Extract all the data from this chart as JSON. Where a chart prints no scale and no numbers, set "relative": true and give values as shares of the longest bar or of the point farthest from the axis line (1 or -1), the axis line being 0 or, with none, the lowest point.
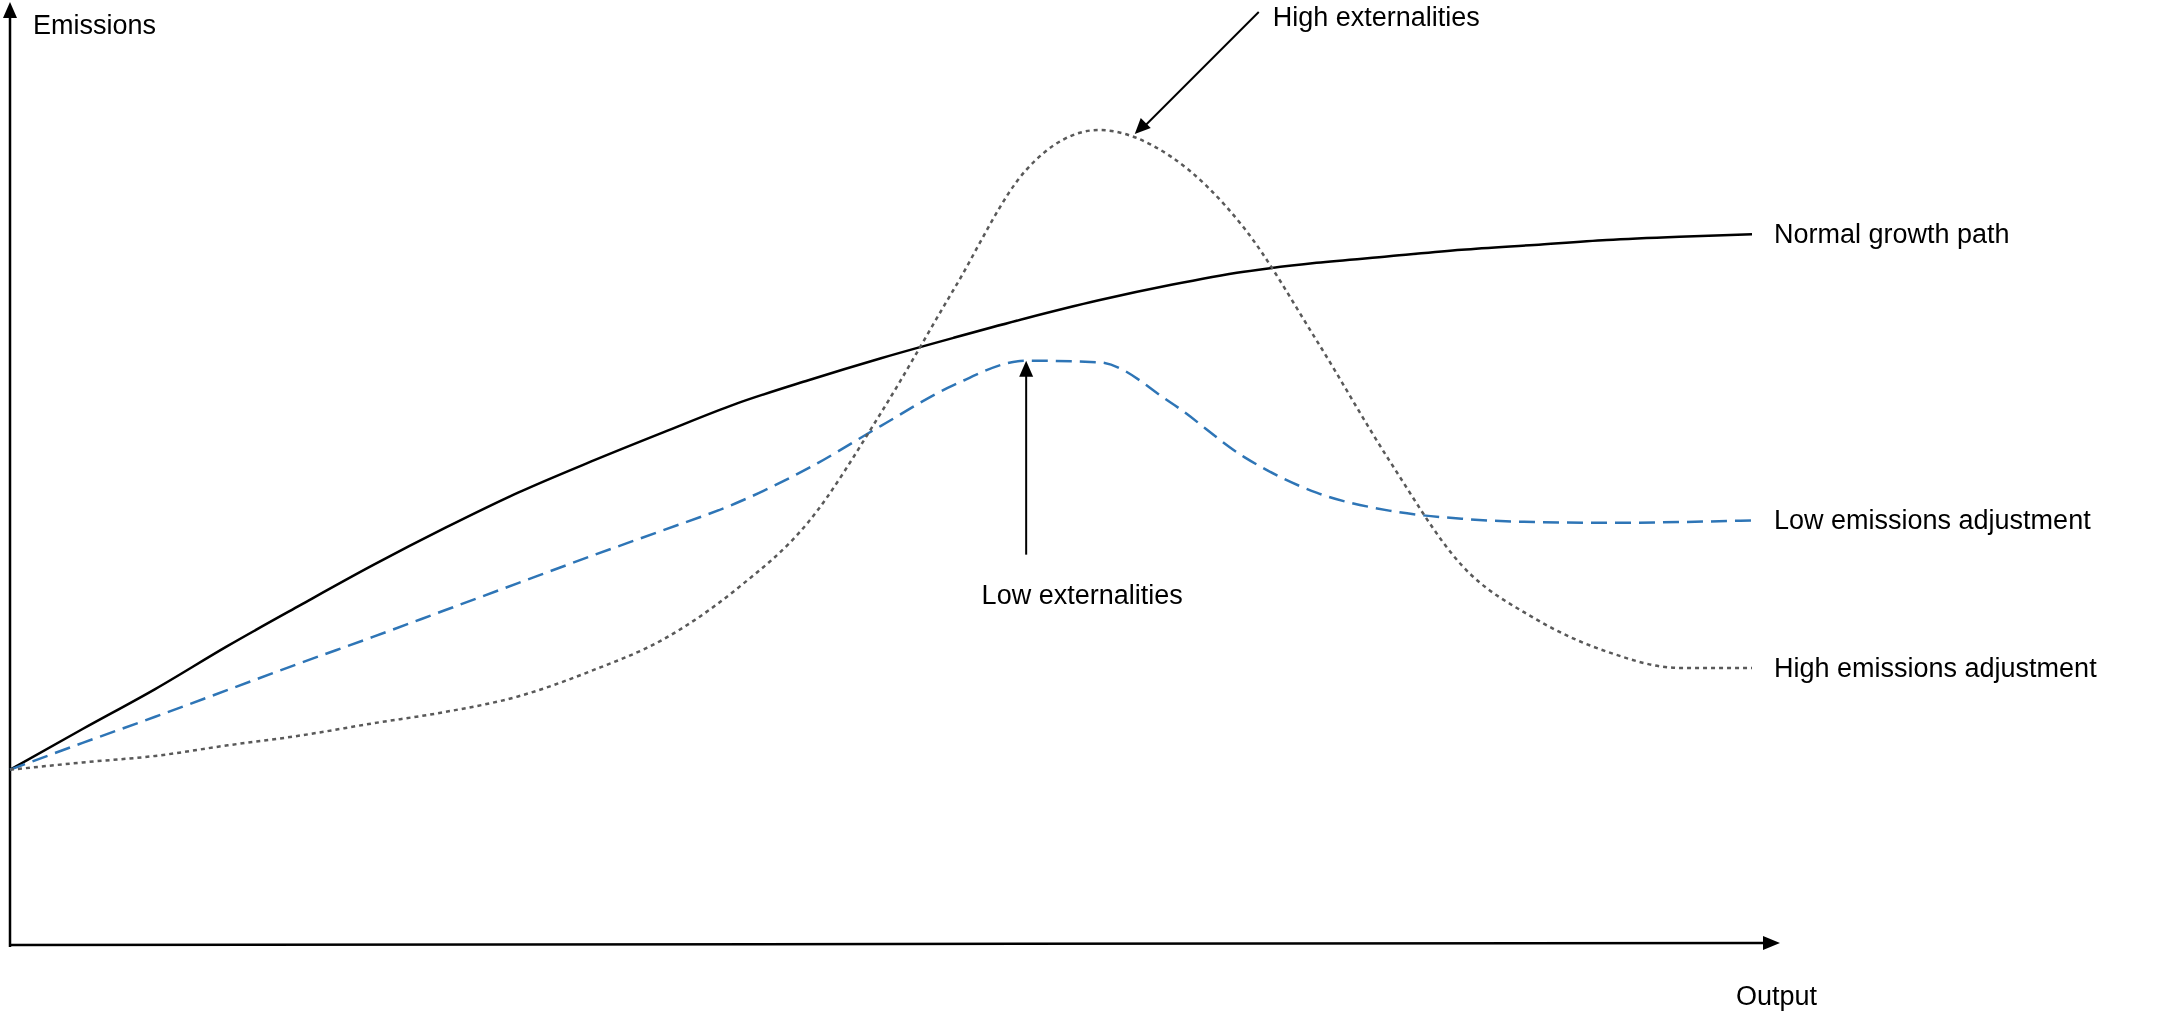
{
  "chart_data": {
    "type": "line",
    "relative": true,
    "xlabel": "Output",
    "ylabel": "Emissions",
    "legend": false,
    "categories": [
      null,
      null,
      null,
      null,
      null,
      null,
      null,
      null,
      null,
      null,
      null,
      null,
      null,
      null,
      null,
      null,
      null,
      null,
      null,
      null,
      null,
      null,
      null,
      null,
      null
    ],
    "series": [
      {
        "name": "Normal growth path",
        "color": "#000000",
        "line_style": "solid",
        "values": [
          0.215,
          0.265,
          0.314,
          0.367,
          0.417,
          0.466,
          0.512,
          0.555,
          0.593,
          0.629,
          0.664,
          0.693,
          0.72,
          0.745,
          0.769,
          0.791,
          0.81,
          0.826,
          0.837,
          0.845,
          0.853,
          0.859,
          0.865,
          0.869,
          0.872
        ]
      },
      {
        "name": "Low emissions adjustment",
        "color": "#2e75b6",
        "line_style": "dashed",
        "values": [
          0.215,
          0.248,
          0.28,
          0.313,
          0.346,
          0.378,
          0.411,
          0.444,
          0.477,
          0.509,
          0.542,
          0.585,
          0.637,
          0.687,
          0.717,
          0.715,
          0.665,
          0.599,
          0.555,
          0.533,
          0.523,
          0.519,
          0.518,
          0.519,
          0.521
        ]
      },
      {
        "name": "High emissions adjustment",
        "color": "#595959",
        "line_style": "dotted",
        "values": [
          0.215,
          0.224,
          0.232,
          0.245,
          0.257,
          0.272,
          0.286,
          0.305,
          0.336,
          0.375,
          0.436,
          0.519,
          0.653,
          0.804,
          0.951,
          1.0,
          0.967,
          0.88,
          0.742,
          0.595,
          0.466,
          0.401,
          0.36,
          0.34,
          0.34
        ]
      }
    ],
    "annotations": [
      "High externalities",
      "Low externalities"
    ]
  }
}
